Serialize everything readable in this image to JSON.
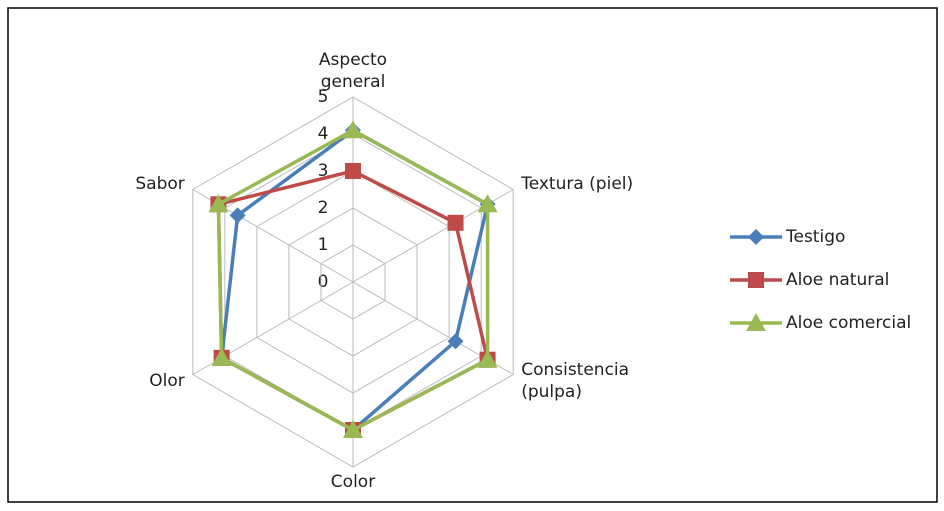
{
  "chart_data": {
    "type": "radar",
    "categories": [
      "Aspecto general",
      "Textura (piel)",
      "Consistencia (pulpa)",
      "Color",
      "Olor",
      "Sabor"
    ],
    "rlim": [
      0,
      5
    ],
    "rticks": [
      0,
      1,
      2,
      3,
      4,
      5
    ],
    "grid": true,
    "legend": "right",
    "series": [
      {
        "name": "Testigo",
        "color": "#4a7ebb",
        "marker": "diamond",
        "values": [
          4.1,
          4.2,
          3.2,
          4,
          4.1,
          3.6
        ]
      },
      {
        "name": "Aloe natural",
        "color": "#be4b48",
        "marker": "square",
        "values": [
          3,
          3.2,
          4.2,
          4,
          4.1,
          4.2
        ]
      },
      {
        "name": "Aloe comercial",
        "color": "#98b954",
        "marker": "triangle",
        "values": [
          4.1,
          4.2,
          4.2,
          4,
          4.1,
          4.2
        ]
      }
    ]
  }
}
